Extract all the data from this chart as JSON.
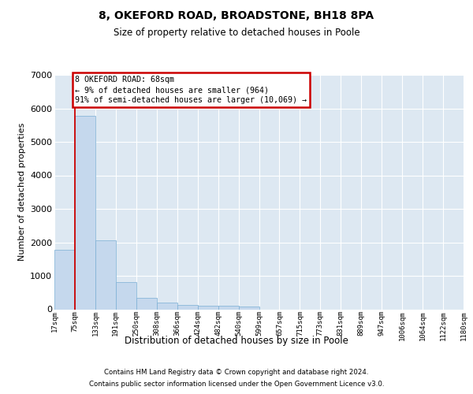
{
  "title1": "8, OKEFORD ROAD, BROADSTONE, BH18 8PA",
  "title2": "Size of property relative to detached houses in Poole",
  "xlabel": "Distribution of detached houses by size in Poole",
  "ylabel": "Number of detached properties",
  "bar_values": [
    1780,
    5770,
    2060,
    820,
    340,
    200,
    120,
    110,
    110,
    80,
    0,
    0,
    0,
    0,
    0,
    0,
    0,
    0,
    0,
    0
  ],
  "tick_labels": [
    "17sqm",
    "75sqm",
    "133sqm",
    "191sqm",
    "250sqm",
    "308sqm",
    "366sqm",
    "424sqm",
    "482sqm",
    "540sqm",
    "599sqm",
    "657sqm",
    "715sqm",
    "773sqm",
    "831sqm",
    "889sqm",
    "947sqm",
    "1006sqm",
    "1064sqm",
    "1122sqm",
    "1180sqm"
  ],
  "bar_color": "#c5d8ed",
  "bar_edge_color": "#7bafd4",
  "bg_color": "#dde8f2",
  "grid_color": "#ffffff",
  "annotation_line1": "8 OKEFORD ROAD: 68sqm",
  "annotation_line2": "← 9% of detached houses are smaller (964)",
  "annotation_line3": "91% of semi-detached houses are larger (10,069) →",
  "vline_color": "#cc0000",
  "ylim": [
    0,
    7000
  ],
  "yticks": [
    0,
    1000,
    2000,
    3000,
    4000,
    5000,
    6000,
    7000
  ],
  "footer1": "Contains HM Land Registry data © Crown copyright and database right 2024.",
  "footer2": "Contains public sector information licensed under the Open Government Licence v3.0."
}
